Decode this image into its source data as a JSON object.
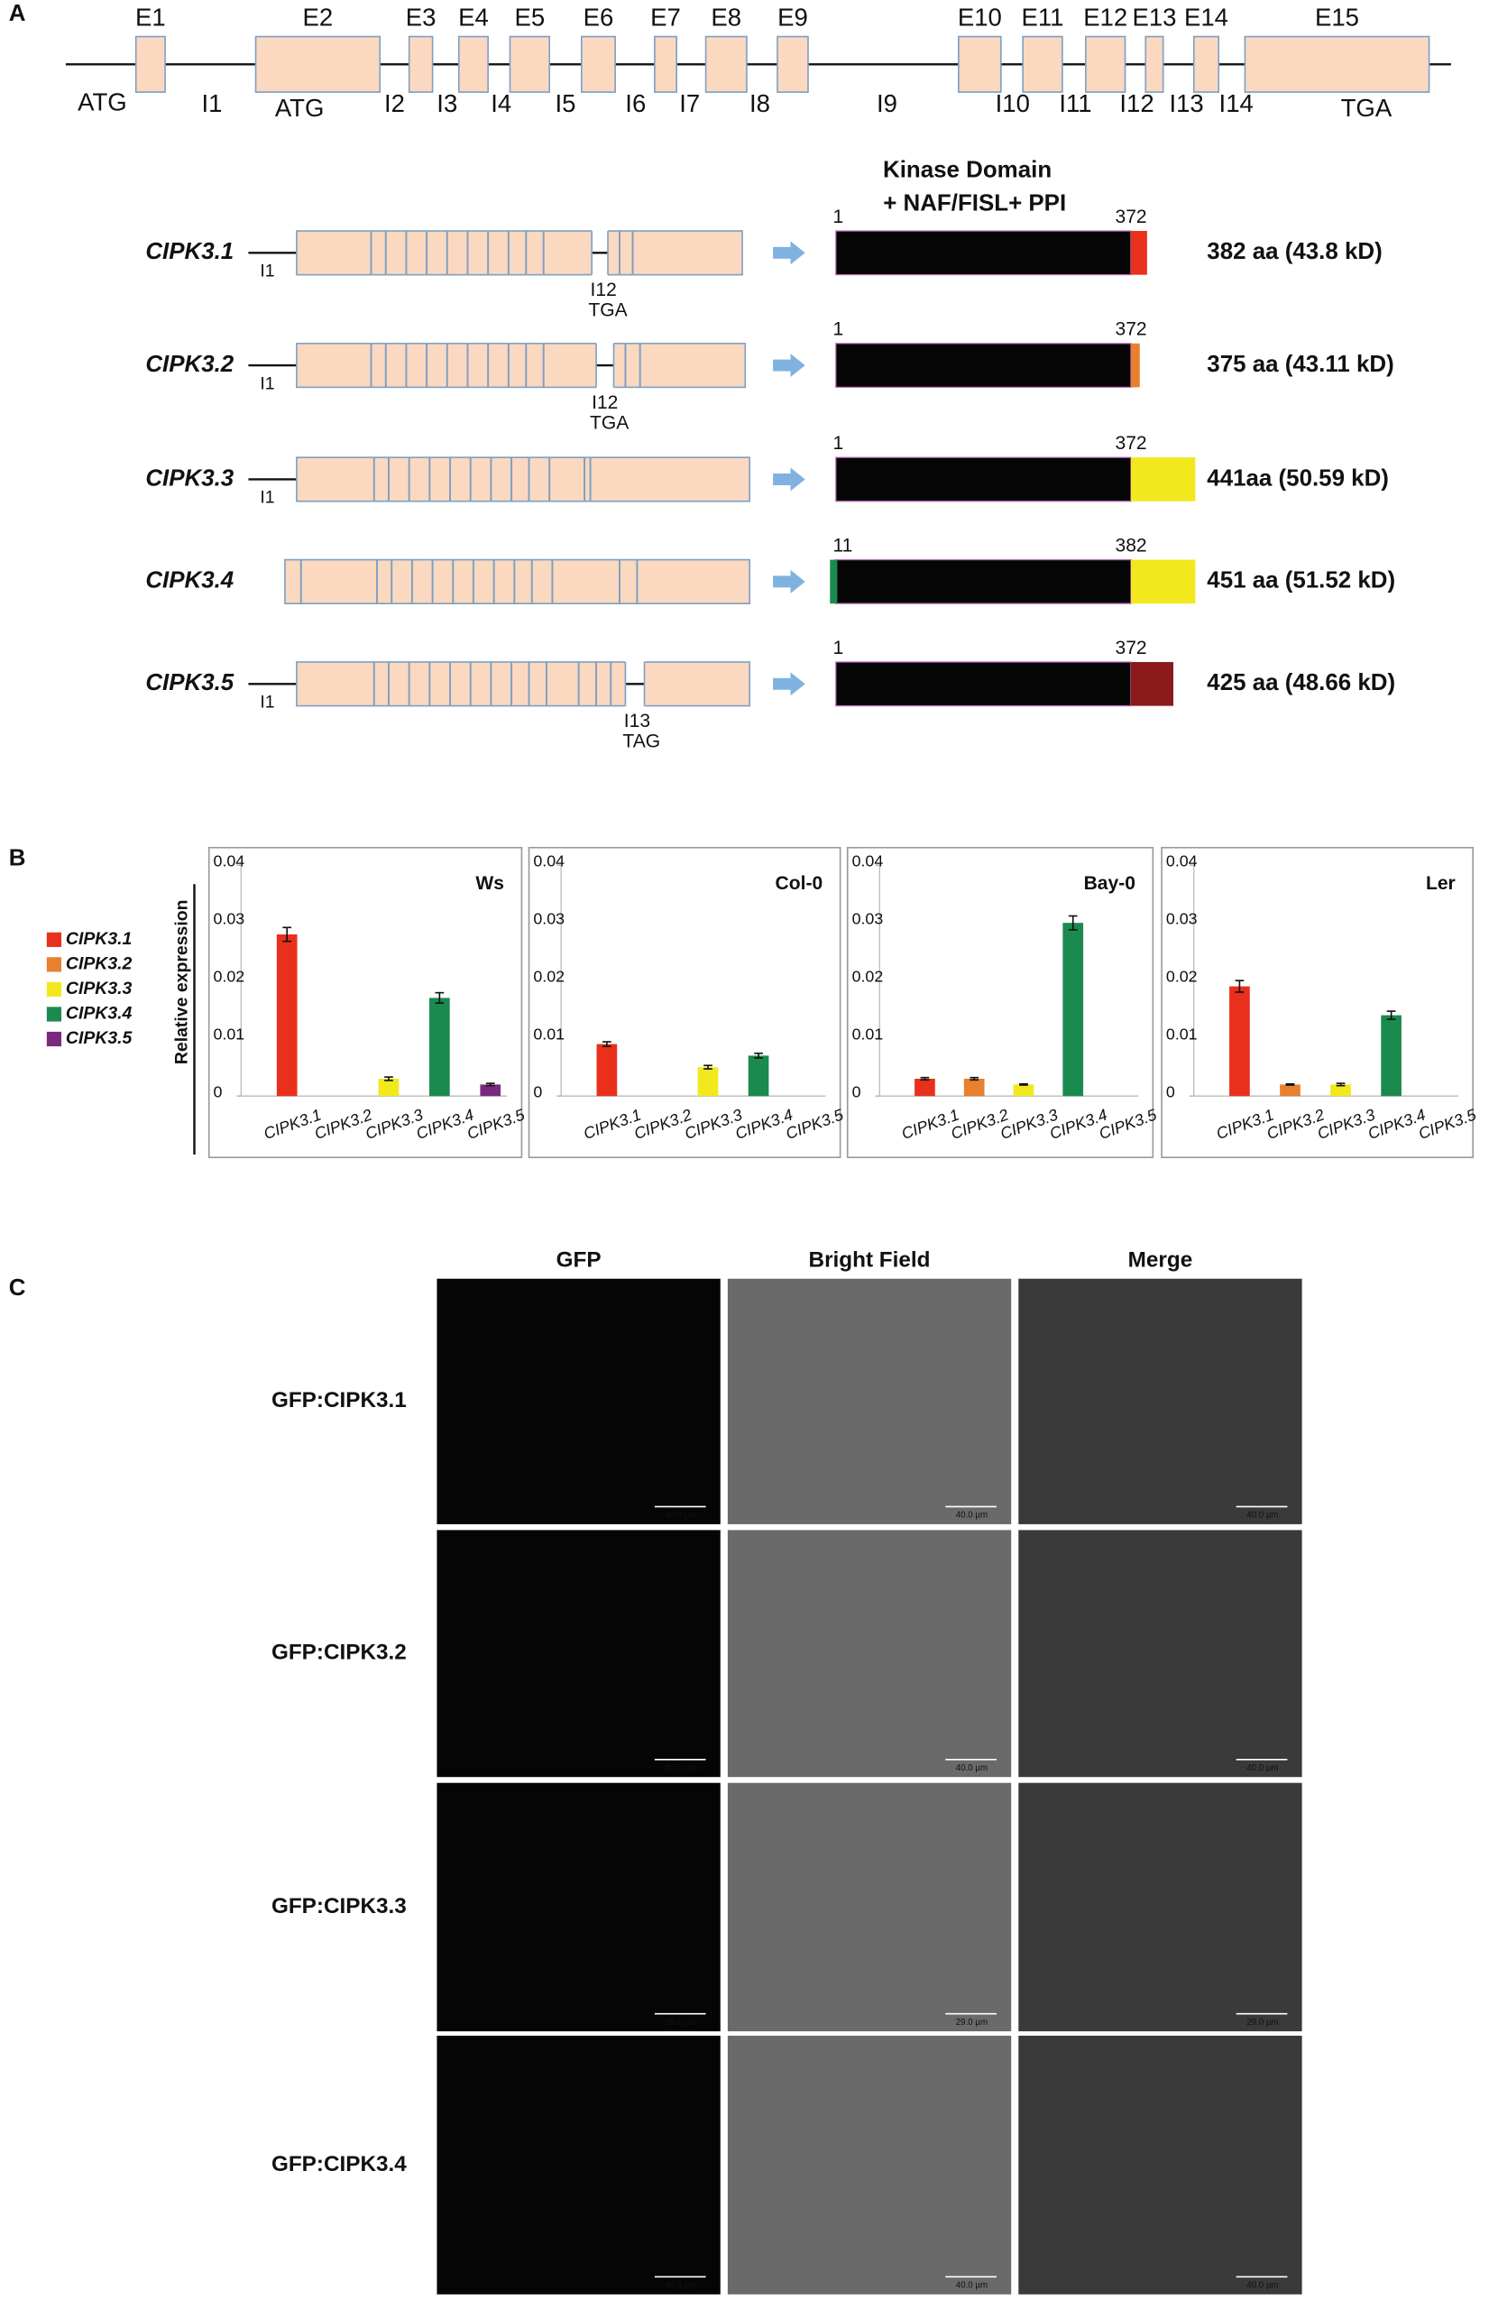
{
  "panel_a": {
    "label": "A",
    "exons": [
      "E1",
      "E2",
      "E3",
      "E4",
      "E5",
      "E6",
      "E7",
      "E8",
      "E9",
      "E10",
      "E11",
      "E12",
      "E13",
      "E14",
      "E15"
    ],
    "introns": [
      "I1",
      "I2",
      "I3",
      "I4",
      "I5",
      "I6",
      "I7",
      "I8",
      "I9",
      "I10",
      "I11",
      "I12",
      "I13",
      "I14"
    ],
    "start_codon": "ATG",
    "alt_start_codon": "ATG",
    "stop_codon": "TGA",
    "protein_header": [
      "Kinase Domain",
      "+ NAF/FISL+ PPI"
    ],
    "isoforms": [
      {
        "name": "CIPK3.1",
        "intron_label": "I1",
        "junction_label": "I12",
        "codon_label": "TGA",
        "start": "1",
        "end": "372",
        "tail_color": "#e8301c",
        "size": "382 aa (43.8 kD)"
      },
      {
        "name": "CIPK3.2",
        "intron_label": "I1",
        "junction_label": "I12",
        "codon_label": "TGA",
        "start": "1",
        "end": "372",
        "tail_color": "#e8802e",
        "size": "375 aa (43.11 kD)"
      },
      {
        "name": "CIPK3.3",
        "intron_label": "I1",
        "start": "1",
        "end": "372",
        "tail_color": "#f2e81e",
        "size": "441aa (50.59 kD)"
      },
      {
        "name": "CIPK3.4",
        "start": "11",
        "end": "382",
        "head_color": "#1a8a4e",
        "tail_color": "#f2e81e",
        "size": "451 aa (51.52 kD)"
      },
      {
        "name": "CIPK3.5",
        "intron_label": "I1",
        "junction_label": "I13",
        "codon_label": "TAG",
        "start": "1",
        "end": "372",
        "tail_color": "#8c1a1a",
        "size": "425 aa (48.66 kD)"
      }
    ]
  },
  "panel_b": {
    "label": "B",
    "y_label": "Relative expression",
    "legend": [
      {
        "name": "CIPK3.1",
        "color": "#e8301c"
      },
      {
        "name": "CIPK3.2",
        "color": "#e8802e"
      },
      {
        "name": "CIPK3.3",
        "color": "#f2e81e"
      },
      {
        "name": "CIPK3.4",
        "color": "#1a8a4e"
      },
      {
        "name": "CIPK3.5",
        "color": "#7a2a7e"
      }
    ]
  },
  "chart_data": [
    {
      "type": "bar",
      "title": "Ws",
      "categories": [
        "CIPK3.1",
        "CIPK3.2",
        "CIPK3.3",
        "CIPK3.4",
        "CIPK3.5"
      ],
      "values": [
        0.028,
        0,
        0.003,
        0.017,
        0.002
      ],
      "errors": [
        0.0012,
        0,
        0.0003,
        0.0009,
        0.0002
      ],
      "colors": [
        "#e8301c",
        "#e8802e",
        "#f2e81e",
        "#1a8a4e",
        "#7a2a7e"
      ],
      "ylim": [
        0,
        0.04
      ],
      "yticks": [
        0,
        0.01,
        0.02,
        0.03,
        0.04
      ]
    },
    {
      "type": "bar",
      "title": "Col-0",
      "categories": [
        "CIPK3.1",
        "CIPK3.2",
        "CIPK3.3",
        "CIPK3.4",
        "CIPK3.5"
      ],
      "values": [
        0.009,
        0,
        0.005,
        0.007,
        0
      ],
      "errors": [
        0.0004,
        0,
        0.0003,
        0.0004,
        0
      ],
      "colors": [
        "#e8301c",
        "#e8802e",
        "#f2e81e",
        "#1a8a4e",
        "#7a2a7e"
      ],
      "ylim": [
        0,
        0.04
      ],
      "yticks": [
        0,
        0.01,
        0.02,
        0.03,
        0.04
      ]
    },
    {
      "type": "bar",
      "title": "Bay-0",
      "categories": [
        "CIPK3.1",
        "CIPK3.2",
        "CIPK3.3",
        "CIPK3.4",
        "CIPK3.5"
      ],
      "values": [
        0.003,
        0.003,
        0.002,
        0.03,
        0
      ],
      "errors": [
        0.0002,
        0.0002,
        0.0001,
        0.0012,
        0
      ],
      "colors": [
        "#e8301c",
        "#e8802e",
        "#f2e81e",
        "#1a8a4e",
        "#7a2a7e"
      ],
      "ylim": [
        0,
        0.04
      ],
      "yticks": [
        0,
        0.01,
        0.02,
        0.03,
        0.04
      ]
    },
    {
      "type": "bar",
      "title": "Ler",
      "categories": [
        "CIPK3.1",
        "CIPK3.2",
        "CIPK3.3",
        "CIPK3.4",
        "CIPK3.5"
      ],
      "values": [
        0.019,
        0.002,
        0.002,
        0.014,
        0
      ],
      "errors": [
        0.001,
        0.0001,
        0.0002,
        0.0007,
        0
      ],
      "colors": [
        "#e8301c",
        "#e8802e",
        "#f2e81e",
        "#1a8a4e",
        "#7a2a7e"
      ],
      "ylim": [
        0,
        0.04
      ],
      "yticks": [
        0,
        0.01,
        0.02,
        0.03,
        0.04
      ]
    }
  ],
  "panel_c": {
    "label": "C",
    "columns": [
      "GFP",
      "Bright Field",
      "Merge"
    ],
    "rows": [
      {
        "label": "GFP:CIPK3.1",
        "scale_bar": "40.0 µm"
      },
      {
        "label": "GFP:CIPK3.2",
        "scale_bar": "40.0 µm"
      },
      {
        "label": "GFP:CIPK3.3",
        "scale_bar": "29.0 µm"
      },
      {
        "label": "GFP:CIPK3.4",
        "scale_bar": "40.0 µm"
      }
    ]
  }
}
